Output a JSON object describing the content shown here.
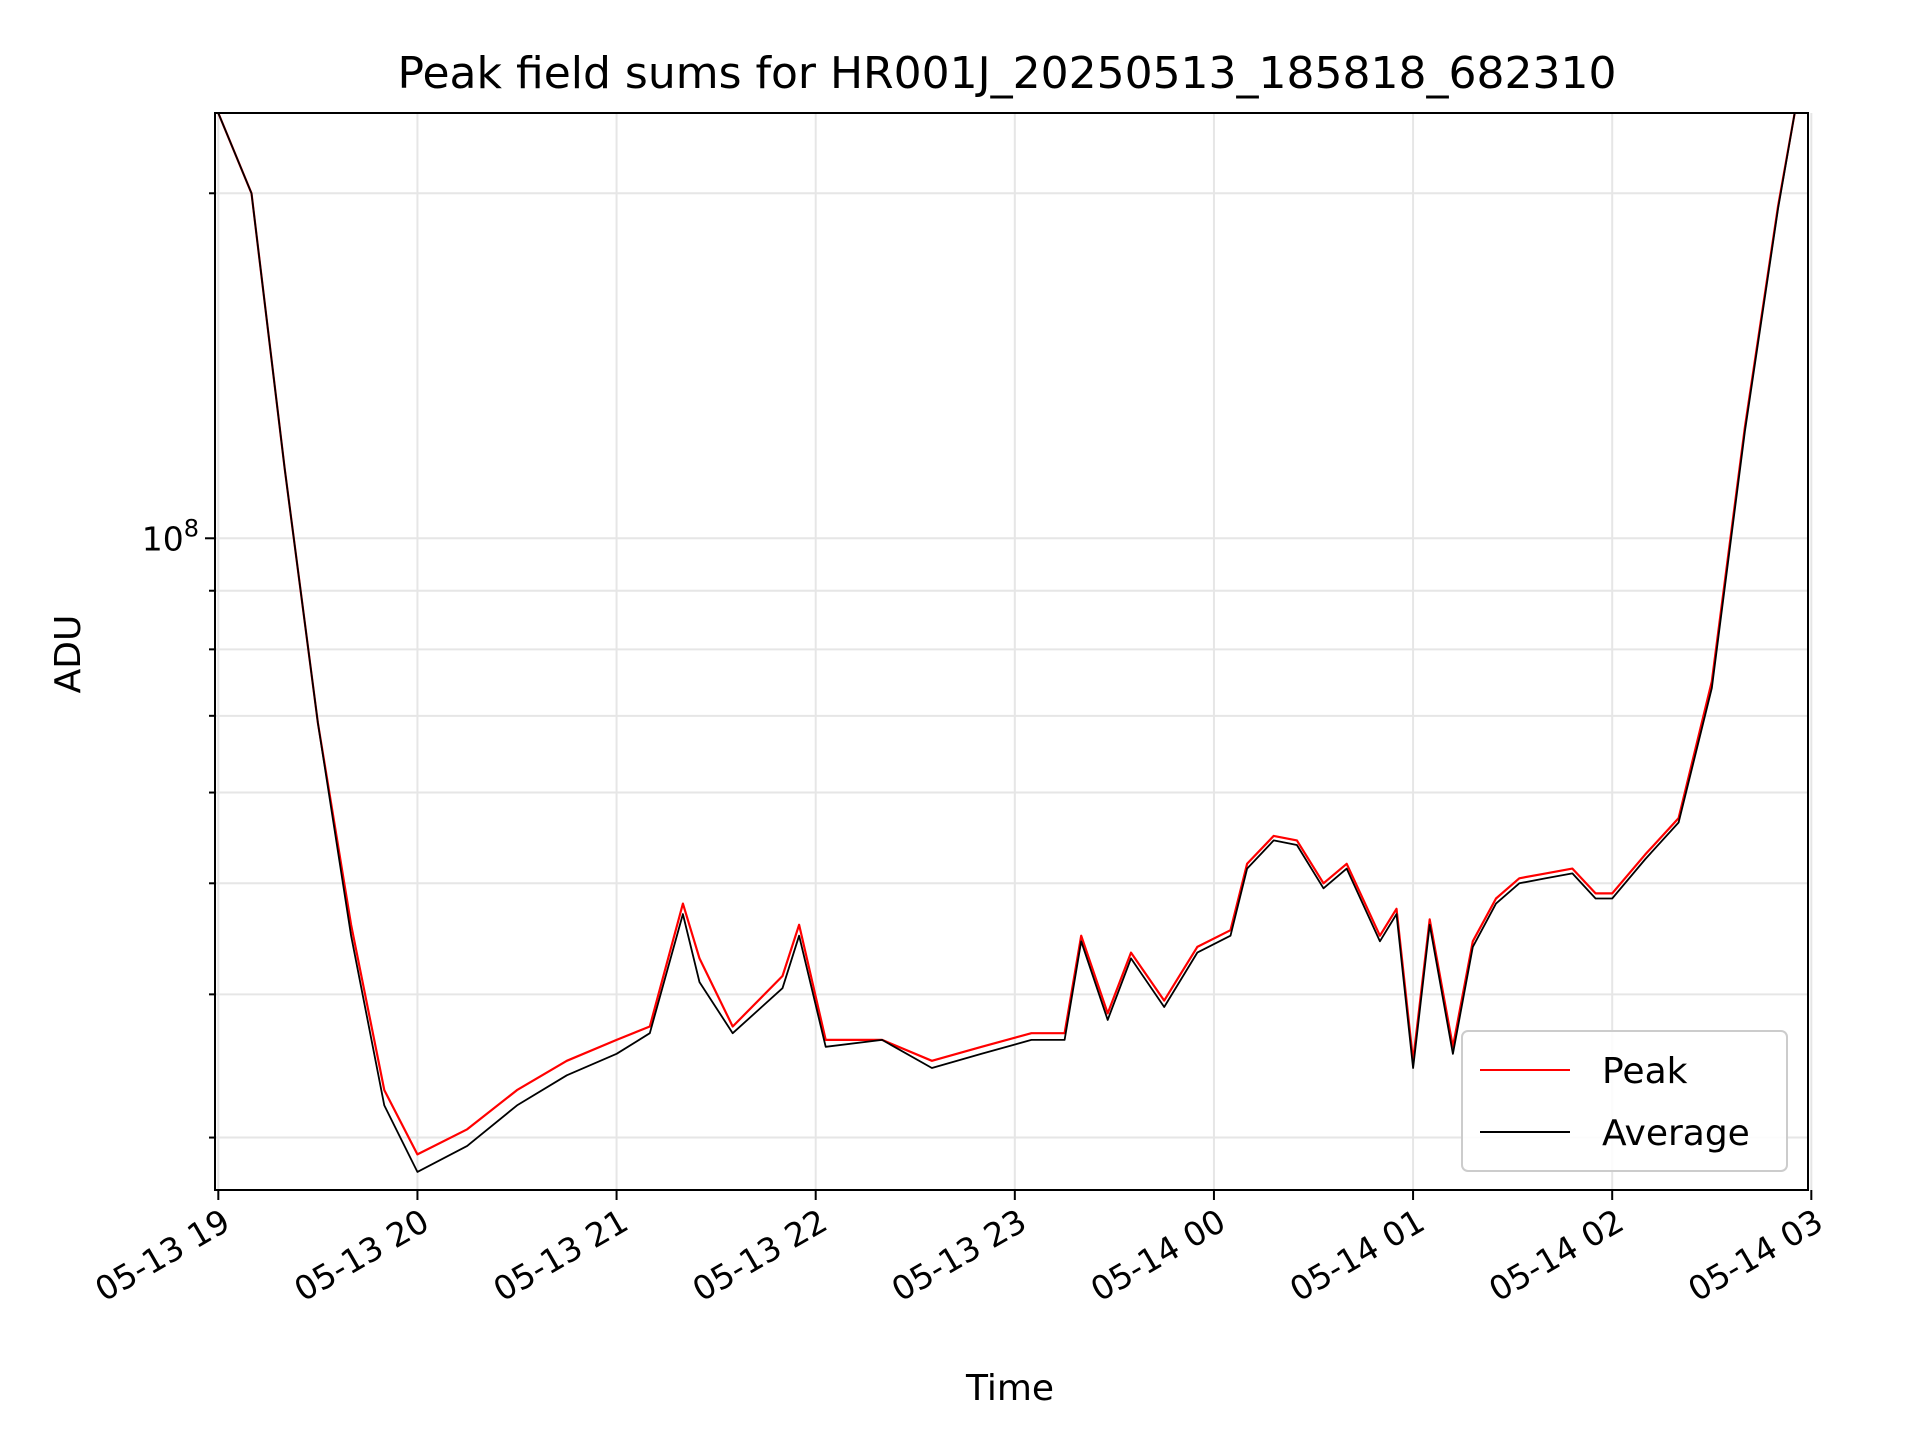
{
  "chart_data": {
    "type": "line",
    "title": "Peak field sums for HR001J_20250513_185818_682310",
    "xlabel": "Time",
    "ylabel": "ADU",
    "x_range": [
      "2025-05-13T18:59:00",
      "2025-05-14T02:59:00"
    ],
    "y_scale": "log",
    "ylim": [
      27000000,
      235000000
    ],
    "grid": true,
    "legend_position": "lower-right",
    "x_ticks": [
      {
        "time": "2025-05-13T19:00:00",
        "label": "05-13 19"
      },
      {
        "time": "2025-05-13T20:00:00",
        "label": "05-13 20"
      },
      {
        "time": "2025-05-13T21:00:00",
        "label": "05-13 21"
      },
      {
        "time": "2025-05-13T22:00:00",
        "label": "05-13 22"
      },
      {
        "time": "2025-05-13T23:00:00",
        "label": "05-13 23"
      },
      {
        "time": "2025-05-14T00:00:00",
        "label": "05-14 00"
      },
      {
        "time": "2025-05-14T01:00:00",
        "label": "05-14 01"
      },
      {
        "time": "2025-05-14T02:00:00",
        "label": "05-14 02"
      },
      {
        "time": "2025-05-14T03:00:00",
        "label": "05-14 03"
      }
    ],
    "y_major_ticks": [
      {
        "value": 100000000,
        "base": "10",
        "exponent": "8"
      }
    ],
    "y_minor_ticks": [
      30000000,
      40000000,
      50000000,
      60000000,
      70000000,
      80000000,
      90000000,
      200000000
    ],
    "series": [
      {
        "name": "Peak",
        "color": "#ff0000",
        "x": [
          "2025-05-13T19:00:00",
          "2025-05-13T19:10:00",
          "2025-05-13T19:20:00",
          "2025-05-13T19:30:00",
          "2025-05-13T19:40:00",
          "2025-05-13T19:50:00",
          "2025-05-13T20:00:00",
          "2025-05-13T20:15:00",
          "2025-05-13T20:30:00",
          "2025-05-13T20:45:00",
          "2025-05-13T21:00:00",
          "2025-05-13T21:10:00",
          "2025-05-13T21:20:00",
          "2025-05-13T21:25:00",
          "2025-05-13T21:35:00",
          "2025-05-13T21:50:00",
          "2025-05-13T21:55:00",
          "2025-05-13T22:03:00",
          "2025-05-13T22:20:00",
          "2025-05-13T22:35:00",
          "2025-05-13T22:50:00",
          "2025-05-13T23:05:00",
          "2025-05-13T23:15:00",
          "2025-05-13T23:20:00",
          "2025-05-13T23:28:00",
          "23:35",
          "2025-05-13T23:45:00",
          "2025-05-13T23:55:00",
          "2025-05-14T00:05:00",
          "2025-05-14T00:10:00",
          "2025-05-14T00:18:00",
          "2025-05-14T00:25:00",
          "2025-05-14T00:33:00",
          "2025-05-14T00:40:00",
          "2025-05-14T00:50:00",
          "2025-05-14T00:55:00",
          "2025-05-14T01:00:00",
          "2025-05-14T01:05:00",
          "2025-05-14T01:12:00",
          "2025-05-14T01:18:00",
          "2025-05-14T01:25:00",
          "2025-05-14T01:32:00",
          "2025-05-14T01:40:00",
          "2025-05-14T01:48:00",
          "2025-05-14T01:55:00",
          "2025-05-14T02:00:00",
          "2025-05-14T02:10:00",
          "2025-05-14T02:20:00",
          "2025-05-14T02:30:00",
          "2025-05-14T02:40:00",
          "2025-05-14T02:50:00",
          "2025-05-14T02:55:00"
        ],
        "values": [
          235000000,
          200000000,
          115000000,
          69000000,
          46000000,
          33000000,
          29000000,
          30500000,
          33000000,
          35000000,
          36500000,
          37500000,
          48000000,
          43000000,
          37500000,
          41500000,
          46000000,
          36500000,
          36500000,
          35000000,
          36000000,
          37000000,
          37000000,
          45000000,
          38500000,
          43500000,
          39500000,
          44000000,
          45500000,
          52000000,
          55000000,
          54500000,
          50000000,
          52000000,
          45000000,
          47500000,
          35000000,
          46500000,
          36000000,
          44500000,
          48500000,
          50500000,
          51000000,
          51500000,
          49000000,
          49000000,
          53000000,
          57000000,
          75000000,
          125000000,
          195000000,
          235000000
        ]
      },
      {
        "name": "Average",
        "color": "#000000",
        "x": [
          "2025-05-13T19:00:00",
          "2025-05-13T19:10:00",
          "2025-05-13T19:20:00",
          "2025-05-13T19:30:00",
          "2025-05-13T19:40:00",
          "2025-05-13T19:50:00",
          "2025-05-13T20:00:00",
          "2025-05-13T20:15:00",
          "2025-05-13T20:30:00",
          "2025-05-13T20:45:00",
          "2025-05-13T21:00:00",
          "2025-05-13T21:10:00",
          "2025-05-13T21:20:00",
          "2025-05-13T21:25:00",
          "2025-05-13T21:35:00",
          "2025-05-13T21:50:00",
          "2025-05-13T21:55:00",
          "2025-05-13T22:03:00",
          "2025-05-13T22:20:00",
          "2025-05-13T22:35:00",
          "2025-05-13T22:50:00",
          "2025-05-13T23:05:00",
          "2025-05-13T23:15:00",
          "2025-05-13T23:20:00",
          "2025-05-13T23:28:00",
          "2025-05-13T23:35:00",
          "2025-05-13T23:45:00",
          "2025-05-13T23:55:00",
          "2025-05-14T00:05:00",
          "2025-05-14T00:10:00",
          "2025-05-14T00:18:00",
          "2025-05-14T00:25:00",
          "2025-05-14T00:33:00",
          "2025-05-14T00:40:00",
          "2025-05-14T00:50:00",
          "2025-05-14T00:55:00",
          "2025-05-14T01:00:00",
          "2025-05-14T01:05:00",
          "2025-05-14T01:12:00",
          "2025-05-14T01:18:00",
          "2025-05-14T01:25:00",
          "2025-05-14T01:32:00",
          "2025-05-14T01:40:00",
          "2025-05-14T01:48:00",
          "2025-05-14T01:55:00",
          "2025-05-14T02:00:00",
          "2025-05-14T02:10:00",
          "2025-05-14T02:20:00",
          "2025-05-14T02:30:00",
          "2025-05-14T02:40:00",
          "2025-05-14T02:50:00",
          "2025-05-14T02:55:00"
        ],
        "values": [
          235000000,
          200000000,
          115000000,
          69000000,
          45000000,
          32000000,
          28000000,
          29500000,
          32000000,
          34000000,
          35500000,
          37000000,
          47000000,
          41000000,
          37000000,
          40500000,
          45000000,
          36000000,
          36500000,
          34500000,
          35500000,
          36500000,
          36500000,
          44500000,
          38000000,
          43000000,
          39000000,
          43500000,
          45000000,
          51500000,
          54500000,
          54000000,
          49500000,
          51500000,
          44500000,
          47000000,
          34500000,
          46000000,
          35500000,
          44000000,
          48000000,
          50000000,
          50500000,
          51000000,
          48500000,
          48500000,
          52500000,
          56500000,
          74000000,
          124000000,
          194000000,
          235000000
        ]
      }
    ]
  }
}
